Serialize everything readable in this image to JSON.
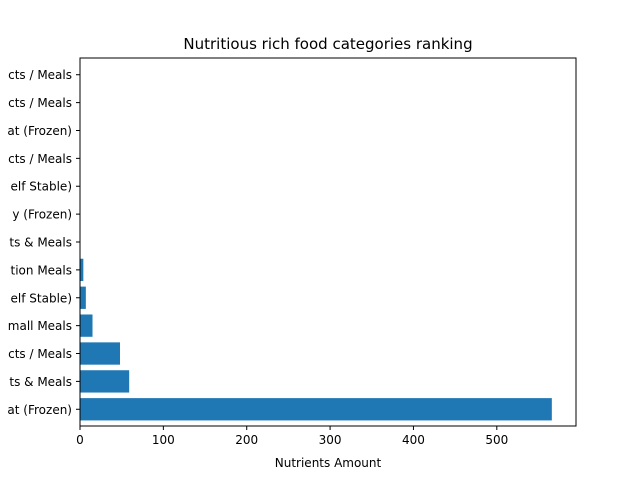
{
  "chart_data": {
    "type": "bar",
    "orientation": "horizontal",
    "title": "Nutritious rich food categories ranking",
    "xlabel": "Nutrients Amount",
    "ylabel": "",
    "xlim": [
      0,
      595
    ],
    "xticks": [
      0,
      100,
      200,
      300,
      400,
      500
    ],
    "grid": false,
    "bar_color": "#1f77b4",
    "categories": [
      "at (Frozen)",
      "ts & Meals",
      "cts / Meals",
      "mall Meals",
      "elf Stable)",
      "tion Meals",
      "ts & Meals",
      "y (Frozen)",
      "elf Stable)",
      "cts / Meals",
      "at (Frozen)",
      "cts / Meals",
      "cts / Meals"
    ],
    "values": [
      566,
      59,
      48,
      15,
      7,
      4,
      0.3,
      0.2,
      0.1,
      0.1,
      0.1,
      0.05,
      0.05
    ]
  }
}
